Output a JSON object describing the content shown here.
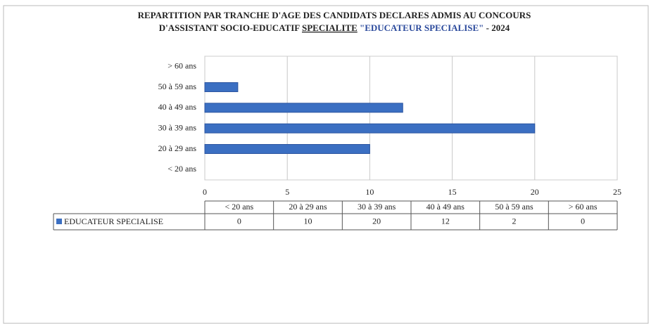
{
  "chart_data": {
    "type": "bar",
    "orientation": "horizontal",
    "title": [
      "REPARTITION  PAR TRANCHE D'AGE DES CANDIDATS DECLARES ADMIS AU CONCOURS",
      "D'ASSISTANT SOCIO-EDUCATIF",
      "SPECIALITE",
      "\"EDUCATEUR SPECIALISE\"",
      "- 2024"
    ],
    "categories": [
      "< 20 ans",
      "20 à 29 ans",
      "30 à 39 ans",
      "40 à 49 ans",
      "50 à 59 ans",
      "> 60 ans"
    ],
    "series": [
      {
        "name": "EDUCATEUR SPECIALISE",
        "color": "#3b6fc2",
        "values": [
          0,
          10,
          20,
          12,
          2,
          0
        ]
      }
    ],
    "xlim": [
      0,
      25
    ],
    "xticks": [
      0,
      5,
      10,
      15,
      20,
      25
    ],
    "grid": true
  }
}
